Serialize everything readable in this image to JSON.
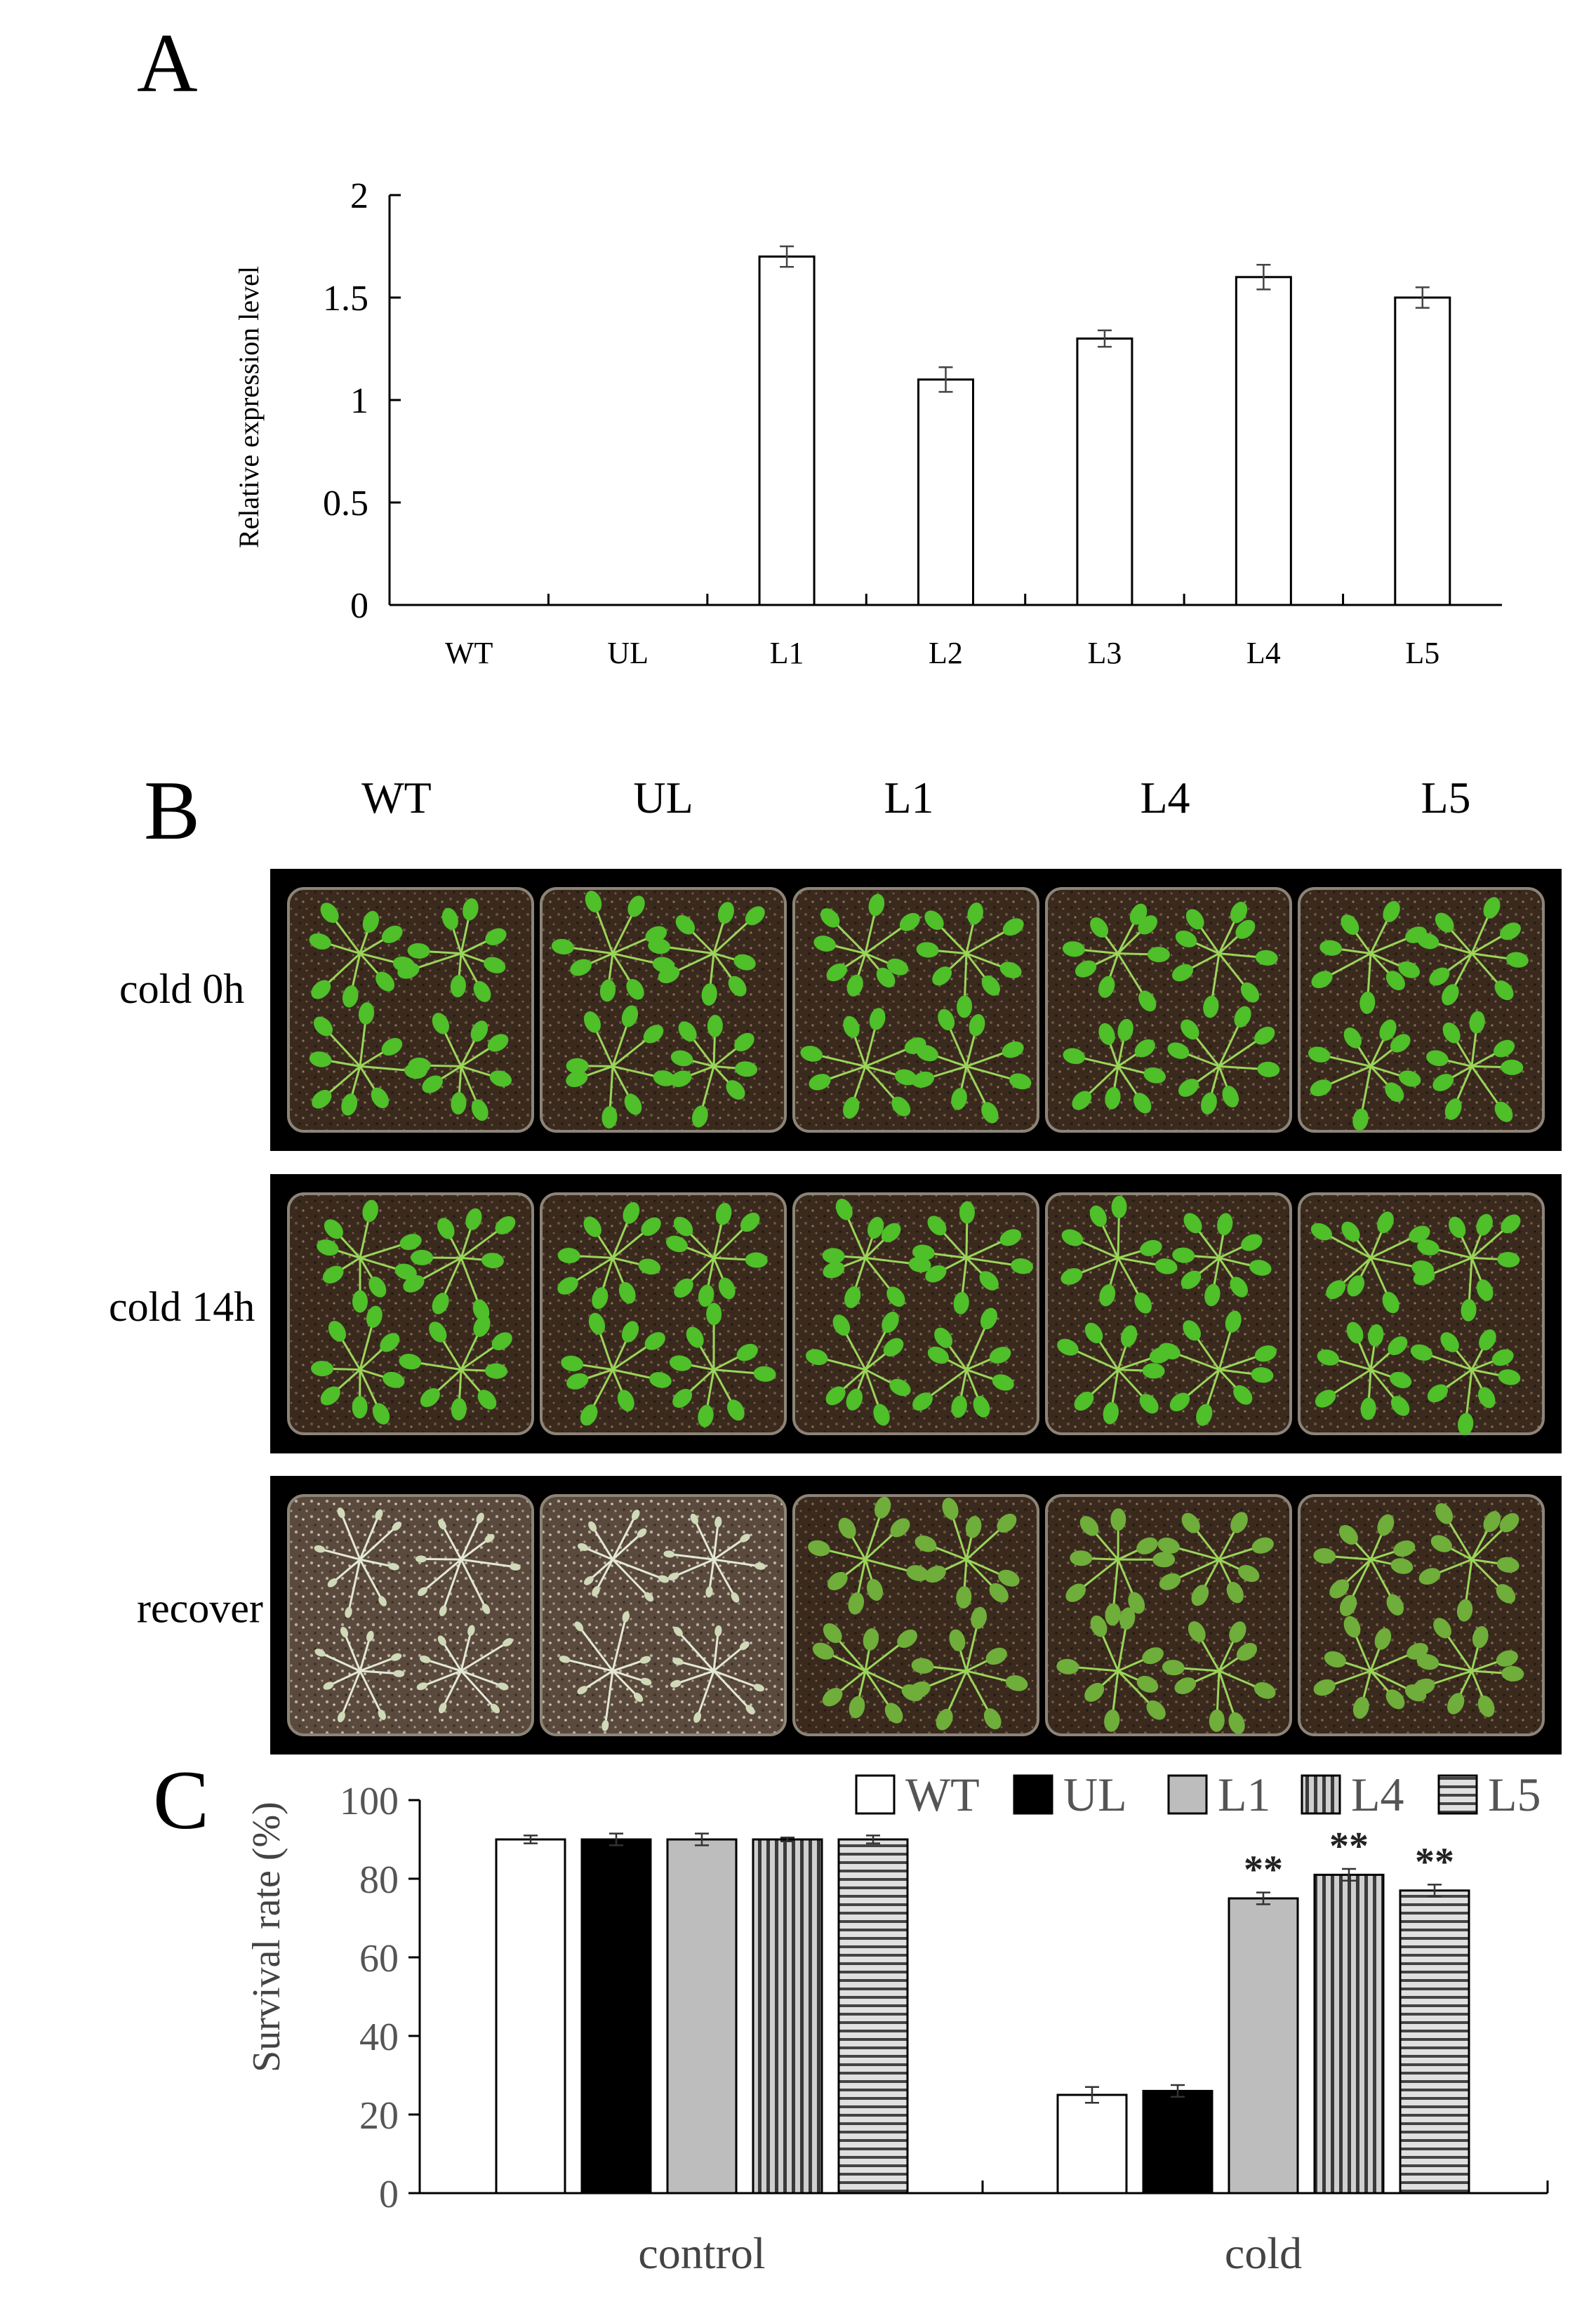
{
  "panels": {
    "a": "A",
    "b": "B",
    "c": "C"
  },
  "photo": {
    "genotypes": [
      "WT",
      "UL",
      "L1",
      "L4",
      "L5"
    ],
    "rows": [
      "cold 0h",
      "cold 14h",
      "recover"
    ]
  },
  "chart_data": [
    {
      "type": "bar",
      "panel": "A",
      "categories": [
        "WT",
        "UL",
        "L1",
        "L2",
        "L3",
        "L4",
        "L5"
      ],
      "values": [
        0,
        0,
        1.7,
        1.1,
        1.3,
        1.6,
        1.5
      ],
      "errors": [
        0,
        0,
        0.05,
        0.06,
        0.04,
        0.06,
        0.05
      ],
      "ylabel": "Relative expression level",
      "ylim": [
        0,
        2
      ],
      "yticks": [
        "0",
        "0.5",
        "1",
        "1.5",
        "2"
      ],
      "bar_color": "#ffffff",
      "grid": false
    },
    {
      "type": "bar",
      "panel": "C",
      "categories": [
        "control",
        "cold"
      ],
      "series": [
        {
          "name": "WT",
          "values": [
            90,
            25
          ],
          "errors": [
            1,
            2
          ],
          "fill": "#ffffff"
        },
        {
          "name": "UL",
          "values": [
            90,
            26
          ],
          "errors": [
            1.5,
            1.5
          ],
          "fill": "#000000"
        },
        {
          "name": "L1",
          "values": [
            90,
            75
          ],
          "errors": [
            1.5,
            1.5
          ],
          "fill": "#bdbdbd"
        },
        {
          "name": "L4",
          "values": [
            90,
            81
          ],
          "errors": [
            0.5,
            1.5
          ],
          "fill": "vertical-stripes"
        },
        {
          "name": "L5",
          "values": [
            90,
            77
          ],
          "errors": [
            1,
            1.5
          ],
          "fill": "horizontal-stripes"
        }
      ],
      "significance": [
        {
          "category": "cold",
          "series": "L1",
          "label": "**"
        },
        {
          "category": "cold",
          "series": "L4",
          "label": "**"
        },
        {
          "category": "cold",
          "series": "L5",
          "label": "**"
        }
      ],
      "ylabel": "Survival rate (%)",
      "ylim": [
        0,
        100
      ],
      "yticks": [
        "0",
        "20",
        "40",
        "60",
        "80",
        "100"
      ],
      "legend_position": "top-right",
      "grid": false
    }
  ]
}
